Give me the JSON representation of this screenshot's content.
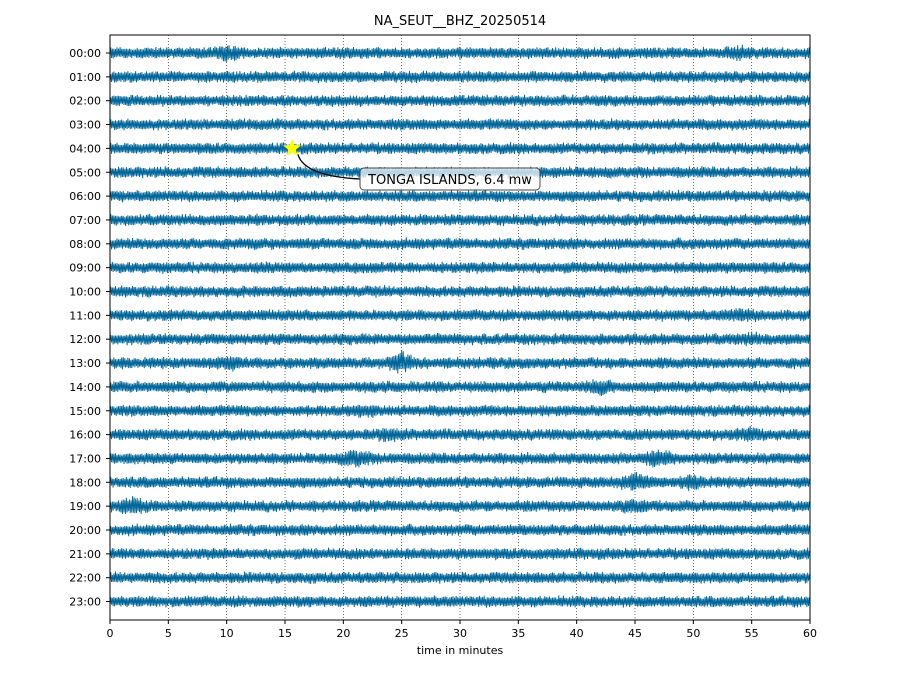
{
  "chart_data": {
    "type": "line",
    "title": "NA_SEUT__BHZ_20250514",
    "xlabel": "time in minutes",
    "ylabel": "",
    "xlim": [
      0,
      60
    ],
    "xticks": [
      0,
      5,
      10,
      15,
      20,
      25,
      30,
      35,
      40,
      45,
      50,
      55,
      60
    ],
    "grid": "vertical dotted",
    "trace_color": "#006699",
    "hours": [
      "00:00",
      "01:00",
      "02:00",
      "03:00",
      "04:00",
      "05:00",
      "06:00",
      "07:00",
      "08:00",
      "09:00",
      "10:00",
      "11:00",
      "12:00",
      "13:00",
      "14:00",
      "15:00",
      "16:00",
      "17:00",
      "18:00",
      "19:00",
      "20:00",
      "21:00",
      "22:00",
      "23:00"
    ],
    "bursts": [
      {
        "hour": 0,
        "minute": 10,
        "amp": 1.6
      },
      {
        "hour": 0,
        "minute": 54,
        "amp": 1.4
      },
      {
        "hour": 11,
        "minute": 54,
        "amp": 1.4
      },
      {
        "hour": 12,
        "minute": 55,
        "amp": 1.3
      },
      {
        "hour": 13,
        "minute": 10,
        "amp": 1.6
      },
      {
        "hour": 13,
        "minute": 25,
        "amp": 2.0
      },
      {
        "hour": 14,
        "minute": 42,
        "amp": 1.6
      },
      {
        "hour": 15,
        "minute": 22,
        "amp": 1.4
      },
      {
        "hour": 16,
        "minute": 24,
        "amp": 1.4
      },
      {
        "hour": 16,
        "minute": 55,
        "amp": 1.5
      },
      {
        "hour": 17,
        "minute": 21,
        "amp": 1.8
      },
      {
        "hour": 17,
        "minute": 47,
        "amp": 1.8
      },
      {
        "hour": 18,
        "minute": 45,
        "amp": 1.9
      },
      {
        "hour": 18,
        "minute": 50,
        "amp": 1.5
      },
      {
        "hour": 19,
        "minute": 2,
        "amp": 1.8
      },
      {
        "hour": 19,
        "minute": 45,
        "amp": 1.6
      }
    ],
    "event": {
      "hour": 4,
      "minute": 15.6,
      "label": "TONGA ISLANDS, 6.4 mw",
      "marker_color": "#ffff00"
    }
  }
}
